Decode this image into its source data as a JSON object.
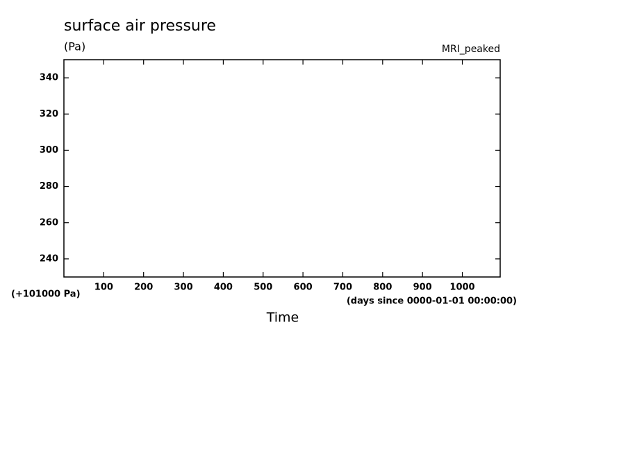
{
  "chart_data": {
    "type": "line",
    "title": "surface air pressure",
    "y_units": "(Pa)",
    "model": "MRI_peaked",
    "y_offset_label": "(+101000 Pa)",
    "x_label": "Time",
    "x_units": "(days since 0000-01-01 00:00:00)",
    "series": [],
    "xlim": [
      0,
      1095
    ],
    "xticks": [
      100,
      200,
      300,
      400,
      500,
      600,
      700,
      800,
      900,
      1000
    ],
    "ylim": [
      230,
      350
    ],
    "yticks": [
      240,
      260,
      280,
      300,
      320,
      340
    ],
    "grid": false
  }
}
